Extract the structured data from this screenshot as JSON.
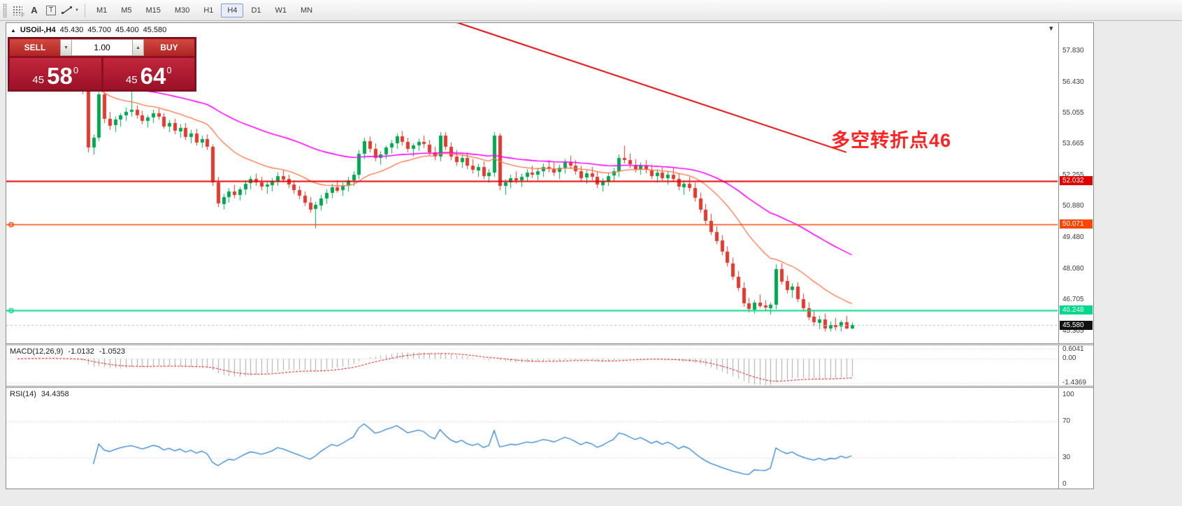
{
  "colors": {
    "candle_up": "#00a651",
    "candle_down": "#e23a2e",
    "ma_fast": "#ff7347",
    "ma_slow": "#ff00ff",
    "trendline": "#d40000",
    "macd_hist": "#a8a8a8",
    "macd_signal": "#e00000",
    "rsi_line": "#2f80d0",
    "sell_buy_red": "#b02323",
    "price_box_red": "#a6142c",
    "annotation_red": "#ff2222",
    "current_price_badge": "#111111"
  },
  "toolbar": {
    "icons": {
      "f_label": "F",
      "text_tool": "A",
      "label_tool": "T",
      "caret_down": "▼",
      "caret_up": "▲",
      "dropdown_caret": "▼"
    },
    "timeframes": [
      "M1",
      "M5",
      "M15",
      "M30",
      "H1",
      "H4",
      "D1",
      "W1",
      "MN"
    ],
    "active_timeframe": "H4"
  },
  "chart": {
    "symbol_info": {
      "marker": "▲",
      "symbol": "USOil-,H4",
      "open": "45.430",
      "high": "45.700",
      "low": "45.400",
      "close": "45.580"
    },
    "trade_panel": {
      "sell_label": "SELL",
      "buy_label": "BUY",
      "volume": "1.00",
      "bid": {
        "prefix": "45",
        "big": "58",
        "sup": "0"
      },
      "ask": {
        "prefix": "45",
        "big": "64",
        "sup": "0"
      }
    },
    "annotation": "多空转折点46"
  },
  "chart_data": {
    "type": "candlestick",
    "symbol": "USOil-",
    "timeframe": "H4",
    "price_range": [
      44.84,
      59.07
    ],
    "price_axis_ticks": [
      "57.830",
      "56.430",
      "55.055",
      "53.665",
      "52.255",
      "50.880",
      "49.480",
      "48.080",
      "46.705",
      "45.305"
    ],
    "candles": [
      [
        56.6,
        56.85,
        56.4,
        56.75
      ],
      [
        56.75,
        57.0,
        56.55,
        56.9
      ],
      [
        56.9,
        57.15,
        56.7,
        57.0
      ],
      [
        57.0,
        57.2,
        56.8,
        56.95
      ],
      [
        56.95,
        57.1,
        56.6,
        56.7
      ],
      [
        56.7,
        56.95,
        56.5,
        56.85
      ],
      [
        56.85,
        57.05,
        56.65,
        56.9
      ],
      [
        56.9,
        57.0,
        56.4,
        56.55
      ],
      [
        56.55,
        56.8,
        56.3,
        56.7
      ],
      [
        56.7,
        56.9,
        56.45,
        56.6
      ],
      [
        56.6,
        56.75,
        56.2,
        56.35
      ],
      [
        56.35,
        56.6,
        56.1,
        56.45
      ],
      [
        56.45,
        56.55,
        55.9,
        56.0
      ],
      [
        56.0,
        56.1,
        53.3,
        53.5
      ],
      [
        53.5,
        54.1,
        53.2,
        53.95
      ],
      [
        53.95,
        56.0,
        53.8,
        55.9
      ],
      [
        55.9,
        56.0,
        54.6,
        54.8
      ],
      [
        54.8,
        55.1,
        54.3,
        54.5
      ],
      [
        54.5,
        54.9,
        54.2,
        54.75
      ],
      [
        54.75,
        55.05,
        54.45,
        54.95
      ],
      [
        54.95,
        55.3,
        54.7,
        55.1
      ],
      [
        55.1,
        56.4,
        54.9,
        55.2
      ],
      [
        55.2,
        55.4,
        54.8,
        54.95
      ],
      [
        54.95,
        55.15,
        54.55,
        54.7
      ],
      [
        54.7,
        54.95,
        54.4,
        54.85
      ],
      [
        54.85,
        55.2,
        54.6,
        55.05
      ],
      [
        55.05,
        55.25,
        54.75,
        54.9
      ],
      [
        54.9,
        55.05,
        54.35,
        54.45
      ],
      [
        54.45,
        54.75,
        54.2,
        54.6
      ],
      [
        54.6,
        54.8,
        54.1,
        54.25
      ],
      [
        54.25,
        54.55,
        53.95,
        54.4
      ],
      [
        54.4,
        54.6,
        53.85,
        54.0
      ],
      [
        54.0,
        54.3,
        53.7,
        54.15
      ],
      [
        54.15,
        54.35,
        53.6,
        53.75
      ],
      [
        53.75,
        54.05,
        53.5,
        53.9
      ],
      [
        53.9,
        54.1,
        53.4,
        53.55
      ],
      [
        53.55,
        53.65,
        51.8,
        51.95
      ],
      [
        51.95,
        52.2,
        50.85,
        51.0
      ],
      [
        51.0,
        51.45,
        50.75,
        51.3
      ],
      [
        51.3,
        51.7,
        51.05,
        51.55
      ],
      [
        51.55,
        51.85,
        51.25,
        51.4
      ],
      [
        51.4,
        51.75,
        51.15,
        51.65
      ],
      [
        51.65,
        52.05,
        51.4,
        51.9
      ],
      [
        51.9,
        52.25,
        51.65,
        52.1
      ],
      [
        52.1,
        52.35,
        51.8,
        51.95
      ],
      [
        51.95,
        52.2,
        51.6,
        51.75
      ],
      [
        51.75,
        52.0,
        51.45,
        51.85
      ],
      [
        51.85,
        52.15,
        51.55,
        52.0
      ],
      [
        52.0,
        52.4,
        51.8,
        52.25
      ],
      [
        52.25,
        52.5,
        51.95,
        52.1
      ],
      [
        52.1,
        52.3,
        51.7,
        51.85
      ],
      [
        51.85,
        52.05,
        51.45,
        51.6
      ],
      [
        51.6,
        51.8,
        51.2,
        51.35
      ],
      [
        51.35,
        51.55,
        50.9,
        51.05
      ],
      [
        51.05,
        51.3,
        50.6,
        50.75
      ],
      [
        50.75,
        51.1,
        49.9,
        50.95
      ],
      [
        50.95,
        51.4,
        50.7,
        51.25
      ],
      [
        51.25,
        51.65,
        51.0,
        51.5
      ],
      [
        51.5,
        51.9,
        51.25,
        51.75
      ],
      [
        51.75,
        52.05,
        51.5,
        51.6
      ],
      [
        51.6,
        51.95,
        51.35,
        51.8
      ],
      [
        51.8,
        52.2,
        51.55,
        52.05
      ],
      [
        52.05,
        52.45,
        51.8,
        52.3
      ],
      [
        52.3,
        53.4,
        52.1,
        53.25
      ],
      [
        53.25,
        53.95,
        53.0,
        53.8
      ],
      [
        53.8,
        54.0,
        53.3,
        53.45
      ],
      [
        53.45,
        53.7,
        52.9,
        53.05
      ],
      [
        53.05,
        53.35,
        52.75,
        53.2
      ],
      [
        53.2,
        53.6,
        53.0,
        53.5
      ],
      [
        53.5,
        53.85,
        53.25,
        53.7
      ],
      [
        53.7,
        54.15,
        53.45,
        54.0
      ],
      [
        54.0,
        54.25,
        53.6,
        53.75
      ],
      [
        53.75,
        53.95,
        53.3,
        53.45
      ],
      [
        53.45,
        53.7,
        53.1,
        53.6
      ],
      [
        53.6,
        53.9,
        53.35,
        53.75
      ],
      [
        53.75,
        54.05,
        53.5,
        53.65
      ],
      [
        53.65,
        53.85,
        53.15,
        53.3
      ],
      [
        53.3,
        53.55,
        52.95,
        53.1
      ],
      [
        53.1,
        54.2,
        52.9,
        54.05
      ],
      [
        54.05,
        54.2,
        53.4,
        53.55
      ],
      [
        53.55,
        53.75,
        52.95,
        53.1
      ],
      [
        53.1,
        53.4,
        52.7,
        52.85
      ],
      [
        52.85,
        53.2,
        52.6,
        53.05
      ],
      [
        53.05,
        53.3,
        52.55,
        52.7
      ],
      [
        52.7,
        53.0,
        52.35,
        52.5
      ],
      [
        52.5,
        52.8,
        52.2,
        52.65
      ],
      [
        52.65,
        52.9,
        52.1,
        52.25
      ],
      [
        52.25,
        52.55,
        51.95,
        52.4
      ],
      [
        52.4,
        54.2,
        52.2,
        54.05
      ],
      [
        54.05,
        54.15,
        51.6,
        51.8
      ],
      [
        51.8,
        52.1,
        51.4,
        51.95
      ],
      [
        51.95,
        52.3,
        51.7,
        52.15
      ],
      [
        52.15,
        52.45,
        51.9,
        52.05
      ],
      [
        52.05,
        52.35,
        51.75,
        52.2
      ],
      [
        52.2,
        52.55,
        52.0,
        52.4
      ],
      [
        52.4,
        52.7,
        52.15,
        52.3
      ],
      [
        52.3,
        52.6,
        52.05,
        52.45
      ],
      [
        52.45,
        52.8,
        52.2,
        52.65
      ],
      [
        52.65,
        52.95,
        52.4,
        52.55
      ],
      [
        52.55,
        52.85,
        52.25,
        52.4
      ],
      [
        52.4,
        52.75,
        52.1,
        52.6
      ],
      [
        52.6,
        53.0,
        52.35,
        52.85
      ],
      [
        52.85,
        53.15,
        52.55,
        52.7
      ],
      [
        52.7,
        52.95,
        52.3,
        52.45
      ],
      [
        52.45,
        52.7,
        52.0,
        52.15
      ],
      [
        52.15,
        52.5,
        51.9,
        52.35
      ],
      [
        52.35,
        52.65,
        52.05,
        52.2
      ],
      [
        52.2,
        52.45,
        51.7,
        51.85
      ],
      [
        51.85,
        52.15,
        51.55,
        52.0
      ],
      [
        52.0,
        52.4,
        51.8,
        52.25
      ],
      [
        52.25,
        52.6,
        52.0,
        52.45
      ],
      [
        52.45,
        53.2,
        52.2,
        53.05
      ],
      [
        53.05,
        53.6,
        52.8,
        52.95
      ],
      [
        52.95,
        53.25,
        52.6,
        52.75
      ],
      [
        52.75,
        53.0,
        52.4,
        52.55
      ],
      [
        52.55,
        52.85,
        52.3,
        52.7
      ],
      [
        52.7,
        52.95,
        52.35,
        52.5
      ],
      [
        52.5,
        52.75,
        52.1,
        52.25
      ],
      [
        52.25,
        52.55,
        51.95,
        52.4
      ],
      [
        52.4,
        52.65,
        52.05,
        52.15
      ],
      [
        52.15,
        52.45,
        51.85,
        52.3
      ],
      [
        52.3,
        52.6,
        52.0,
        52.1
      ],
      [
        52.1,
        52.35,
        51.6,
        51.75
      ],
      [
        51.75,
        52.05,
        51.4,
        51.9
      ],
      [
        51.9,
        52.2,
        51.55,
        51.7
      ],
      [
        51.7,
        51.95,
        51.1,
        51.25
      ],
      [
        51.25,
        51.5,
        50.6,
        50.75
      ],
      [
        50.75,
        51.0,
        50.1,
        50.25
      ],
      [
        50.25,
        50.55,
        49.6,
        49.75
      ],
      [
        49.75,
        50.0,
        49.2,
        49.35
      ],
      [
        49.35,
        49.6,
        48.7,
        48.85
      ],
      [
        48.85,
        49.1,
        48.2,
        48.35
      ],
      [
        48.35,
        48.6,
        47.6,
        47.75
      ],
      [
        47.75,
        48.0,
        47.1,
        47.25
      ],
      [
        47.25,
        47.5,
        46.4,
        46.55
      ],
      [
        46.55,
        46.8,
        46.15,
        46.3
      ],
      [
        46.3,
        46.7,
        46.1,
        46.6
      ],
      [
        46.6,
        46.95,
        46.35,
        46.45
      ],
      [
        46.45,
        46.7,
        46.2,
        46.35
      ],
      [
        46.35,
        46.6,
        46.05,
        46.5
      ],
      [
        46.5,
        48.3,
        46.3,
        48.1
      ],
      [
        48.1,
        48.35,
        47.4,
        47.55
      ],
      [
        47.55,
        47.8,
        47.0,
        47.15
      ],
      [
        47.15,
        47.45,
        46.8,
        47.3
      ],
      [
        47.3,
        47.5,
        46.6,
        46.75
      ],
      [
        46.75,
        47.0,
        46.2,
        46.35
      ],
      [
        46.35,
        46.6,
        45.8,
        45.95
      ],
      [
        45.95,
        46.25,
        45.55,
        45.7
      ],
      [
        45.7,
        46.0,
        45.4,
        45.85
      ],
      [
        45.85,
        46.1,
        45.3,
        45.45
      ],
      [
        45.45,
        45.75,
        45.3,
        45.6
      ],
      [
        45.6,
        45.9,
        45.35,
        45.5
      ],
      [
        45.5,
        45.8,
        45.3,
        45.7
      ],
      [
        45.7,
        46.0,
        45.4,
        45.43
      ],
      [
        45.43,
        45.7,
        45.4,
        45.58
      ]
    ],
    "overlays": {
      "ma_fast": {
        "type": "ema",
        "period": 20,
        "color": "#ff7347"
      },
      "ma_slow": {
        "type": "ema",
        "period": 55,
        "color": "#ff00ff"
      },
      "trendline": {
        "from": [
          60,
          60.8
        ],
        "to": [
          153,
          53.3
        ],
        "color": "#d40000"
      },
      "hlines": [
        {
          "price": 52.032,
          "label": "52.032",
          "color": "#e00000",
          "width": 2,
          "anchor": false
        },
        {
          "price": 50.071,
          "label": "50.071",
          "color": "#ff4500",
          "width": 1.5,
          "anchor": true
        },
        {
          "price": 46.248,
          "label": "46.248",
          "color": "#00d98a",
          "width": 2,
          "anchor": true
        }
      ],
      "current_price": {
        "price": 45.58,
        "label": "45.580"
      }
    },
    "indicators": [
      {
        "type": "macd",
        "label": "MACD(12,26,9)",
        "value_main": "-1.0132",
        "value_signal": "-1.0523",
        "params": [
          12,
          26,
          9
        ],
        "range": [
          -1.55,
          0.75
        ],
        "axis_ticks": [
          "0.6041",
          "0.00",
          "-1.4369"
        ]
      },
      {
        "type": "rsi",
        "label": "RSI(14)",
        "value": "34.4358",
        "period": 14,
        "levels": [
          70,
          30
        ],
        "range": [
          0,
          100
        ],
        "axis_ticks": [
          "100",
          "70",
          "30",
          "0"
        ]
      }
    ]
  }
}
